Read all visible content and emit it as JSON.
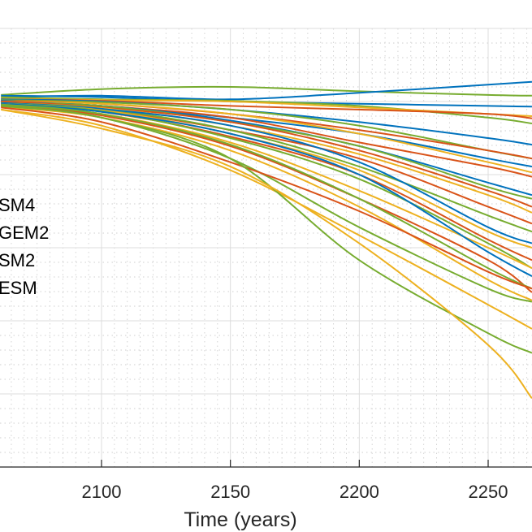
{
  "chart_data": {
    "type": "line",
    "title": "",
    "xlabel": "Time (years)",
    "ylabel": "",
    "xlim": [
      2061,
      2267
    ],
    "ylim": [
      0,
      6
    ],
    "xticks": [
      2100,
      2150,
      2200,
      2250
    ],
    "grid": "on (major + minor dotted)",
    "legend_position": "left (partially cropped)",
    "legend": [
      "SM4",
      "GEM2",
      "SM2",
      "ESM"
    ],
    "colors": {
      "blue": "#0072BD",
      "orange": "#D95319",
      "yellow": "#EDB120",
      "green": "#77AC30"
    },
    "x": [
      2061,
      2100,
      2150,
      2200,
      2250,
      2267
    ],
    "series": [
      {
        "color": "green",
        "values": [
          5.09,
          5.17,
          5.2,
          5.14,
          5.09,
          5.08
        ]
      },
      {
        "color": "blue",
        "values": [
          5.06,
          5.08,
          5.03,
          5.12,
          5.23,
          5.27
        ]
      },
      {
        "color": "blue",
        "values": [
          5.08,
          5.06,
          5.0,
          4.97,
          4.94,
          4.93
        ]
      },
      {
        "color": "green",
        "values": [
          5.06,
          5.03,
          5.01,
          4.94,
          4.78,
          4.7
        ]
      },
      {
        "color": "yellow",
        "values": [
          5.04,
          5.02,
          5.0,
          4.92,
          4.83,
          4.8
        ]
      },
      {
        "color": "orange",
        "values": [
          5.03,
          5.01,
          4.94,
          4.89,
          4.83,
          4.77
        ]
      },
      {
        "color": "blue",
        "values": [
          5.03,
          5.0,
          4.89,
          4.72,
          4.5,
          4.41
        ]
      },
      {
        "color": "green",
        "values": [
          5.02,
          4.99,
          4.89,
          4.67,
          4.33,
          4.22
        ]
      },
      {
        "color": "orange",
        "values": [
          5.01,
          4.97,
          4.83,
          4.61,
          4.33,
          4.22
        ]
      },
      {
        "color": "blue",
        "values": [
          5.01,
          4.94,
          4.78,
          4.56,
          4.22,
          4.11
        ]
      },
      {
        "color": "yellow",
        "values": [
          5.0,
          4.97,
          4.83,
          4.56,
          4.17,
          4.03
        ]
      },
      {
        "color": "orange",
        "values": [
          5.0,
          4.94,
          4.78,
          4.44,
          4.11,
          3.97
        ]
      },
      {
        "color": "blue",
        "values": [
          4.99,
          4.94,
          4.74,
          4.39,
          3.89,
          3.72
        ]
      },
      {
        "color": "green",
        "values": [
          4.98,
          4.94,
          4.72,
          4.39,
          3.83,
          3.67
        ]
      },
      {
        "color": "orange",
        "values": [
          5.0,
          4.92,
          4.72,
          4.33,
          3.78,
          3.56
        ]
      },
      {
        "color": "yellow",
        "values": [
          4.98,
          4.91,
          4.67,
          4.28,
          3.72,
          3.48
        ]
      },
      {
        "color": "orange",
        "values": [
          4.97,
          4.89,
          4.61,
          4.22,
          3.56,
          3.33
        ]
      },
      {
        "color": "green",
        "values": [
          4.98,
          4.9,
          4.61,
          4.11,
          3.44,
          3.22
        ]
      },
      {
        "color": "blue",
        "values": [
          4.98,
          4.9,
          4.67,
          4.17,
          3.28,
          3.06
        ]
      },
      {
        "color": "yellow",
        "values": [
          4.97,
          4.88,
          4.56,
          4.06,
          3.22,
          3.0
        ]
      },
      {
        "color": "orange",
        "values": [
          4.96,
          4.86,
          4.52,
          4.0,
          3.11,
          2.83
        ]
      },
      {
        "color": "green",
        "values": [
          4.97,
          4.87,
          4.5,
          3.94,
          3.06,
          2.72
        ]
      },
      {
        "color": "yellow",
        "values": [
          4.94,
          4.83,
          4.44,
          3.78,
          3.0,
          2.72
        ]
      },
      {
        "color": "blue",
        "values": [
          4.97,
          4.86,
          4.56,
          4.0,
          2.94,
          2.61
        ]
      },
      {
        "color": "orange",
        "values": [
          4.94,
          4.81,
          4.39,
          3.67,
          2.83,
          2.39
        ]
      },
      {
        "color": "green",
        "values": [
          4.96,
          4.83,
          4.41,
          3.67,
          2.72,
          2.44
        ]
      },
      {
        "color": "yellow",
        "values": [
          4.93,
          4.78,
          4.33,
          3.56,
          2.56,
          2.28
        ]
      },
      {
        "color": "green",
        "values": [
          4.94,
          4.78,
          4.22,
          3.28,
          2.44,
          2.26
        ]
      },
      {
        "color": "orange",
        "values": [
          4.92,
          4.72,
          4.17,
          3.5,
          2.67,
          2.44
        ]
      },
      {
        "color": "yellow",
        "values": [
          4.89,
          4.67,
          4.06,
          3.17,
          2.22,
          1.89
        ]
      },
      {
        "color": "green",
        "values": [
          4.94,
          4.78,
          4.22,
          2.83,
          1.83,
          1.56
        ]
      },
      {
        "color": "yellow",
        "values": [
          4.89,
          4.63,
          4.11,
          3.06,
          1.67,
          0.94
        ]
      }
    ]
  }
}
